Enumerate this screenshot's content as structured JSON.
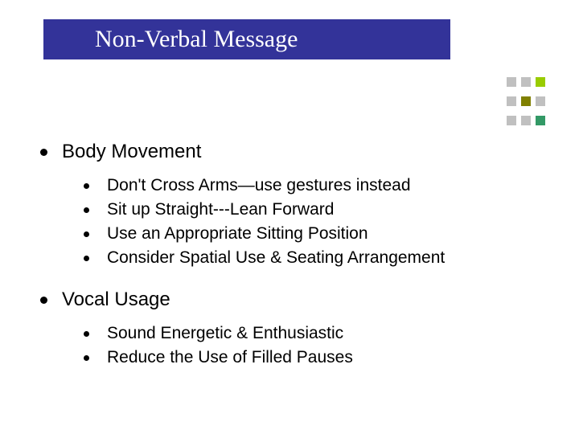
{
  "title": "Non-Verbal Message",
  "title_bar": {
    "background_color": "#333399",
    "text_color": "#ffffff",
    "font_family": "Times New Roman",
    "font_size": 30
  },
  "decoration": {
    "rows": [
      {
        "squares": [
          {
            "color": "#c0c0c0"
          },
          {
            "color": "#c0c0c0"
          },
          {
            "color": "#99cc00"
          }
        ]
      },
      {
        "squares": [
          {
            "color": "#c0c0c0"
          },
          {
            "color": "#808000"
          },
          {
            "color": "#c0c0c0"
          }
        ]
      },
      {
        "squares": [
          {
            "color": "#c0c0c0"
          },
          {
            "color": "#c0c0c0"
          },
          {
            "color": "#339966"
          }
        ]
      }
    ],
    "square_size": 12
  },
  "content": {
    "main_font_size": 24,
    "sub_font_size": 21,
    "bullet_color": "#000000",
    "text_color": "#000000",
    "sections": [
      {
        "heading": "Body Movement",
        "items": [
          "Don't Cross Arms—use gestures instead",
          "Sit up Straight---Lean Forward",
          "Use an Appropriate Sitting Position",
          "Consider Spatial Use & Seating Arrangement"
        ]
      },
      {
        "heading": "Vocal Usage",
        "items": [
          "Sound Energetic & Enthusiastic",
          "Reduce the Use of Filled Pauses"
        ]
      }
    ]
  },
  "background_color": "#ffffff"
}
